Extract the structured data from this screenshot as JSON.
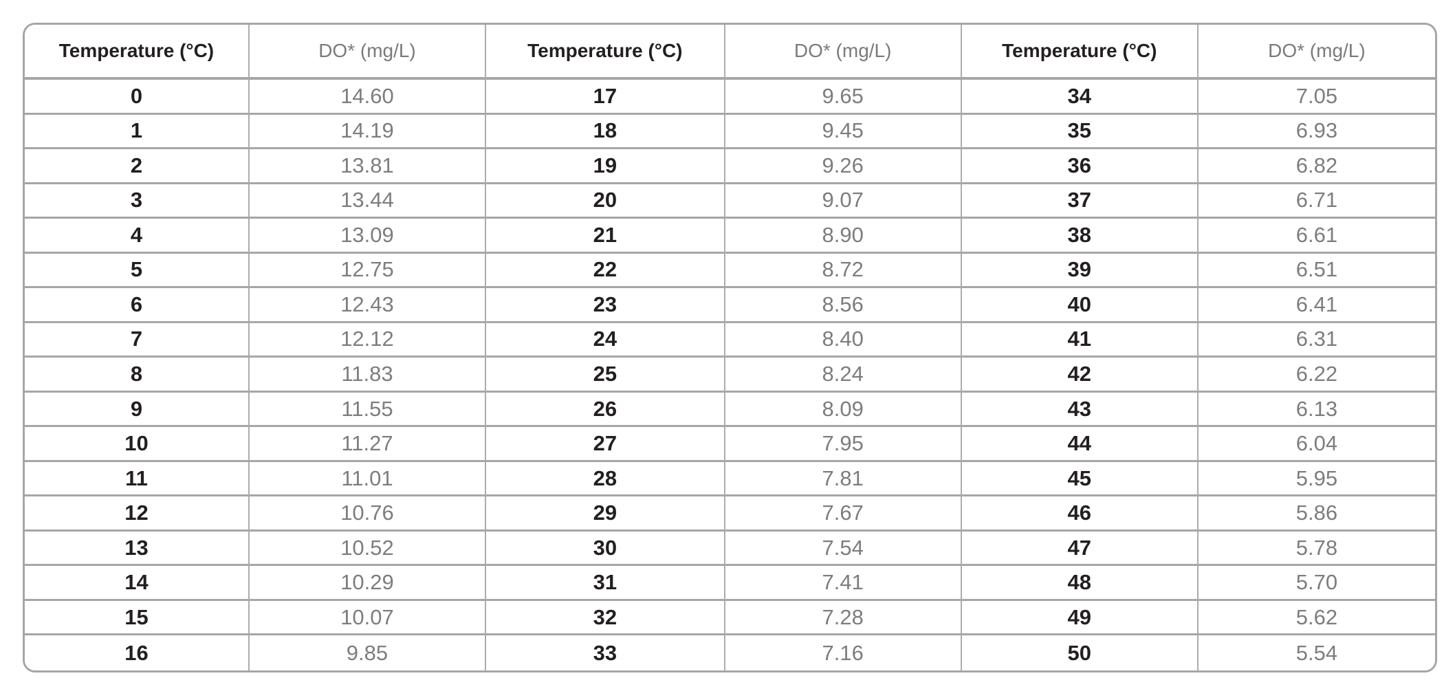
{
  "page": {
    "background": "#ffffff"
  },
  "table": {
    "border_color": "#a6a6a6",
    "temp_text_color": "#231f20",
    "do_text_color": "#7d7d7d",
    "groups": [
      {
        "temp_header": "Temperature (°C)",
        "do_header": "DO* (mg/L)",
        "rows": [
          {
            "temp": "0",
            "do": "14.60"
          },
          {
            "temp": "1",
            "do": "14.19"
          },
          {
            "temp": "2",
            "do": "13.81"
          },
          {
            "temp": "3",
            "do": "13.44"
          },
          {
            "temp": "4",
            "do": "13.09"
          },
          {
            "temp": "5",
            "do": "12.75"
          },
          {
            "temp": "6",
            "do": "12.43"
          },
          {
            "temp": "7",
            "do": "12.12"
          },
          {
            "temp": "8",
            "do": "11.83"
          },
          {
            "temp": "9",
            "do": "11.55"
          },
          {
            "temp": "10",
            "do": "11.27"
          },
          {
            "temp": "11",
            "do": "11.01"
          },
          {
            "temp": "12",
            "do": "10.76"
          },
          {
            "temp": "13",
            "do": "10.52"
          },
          {
            "temp": "14",
            "do": "10.29"
          },
          {
            "temp": "15",
            "do": "10.07"
          },
          {
            "temp": "16",
            "do": "9.85"
          }
        ]
      },
      {
        "temp_header": "Temperature (°C)",
        "do_header": "DO* (mg/L)",
        "rows": [
          {
            "temp": "17",
            "do": "9.65"
          },
          {
            "temp": "18",
            "do": "9.45"
          },
          {
            "temp": "19",
            "do": "9.26"
          },
          {
            "temp": "20",
            "do": "9.07"
          },
          {
            "temp": "21",
            "do": "8.90"
          },
          {
            "temp": "22",
            "do": "8.72"
          },
          {
            "temp": "23",
            "do": "8.56"
          },
          {
            "temp": "24",
            "do": "8.40"
          },
          {
            "temp": "25",
            "do": "8.24"
          },
          {
            "temp": "26",
            "do": "8.09"
          },
          {
            "temp": "27",
            "do": "7.95"
          },
          {
            "temp": "28",
            "do": "7.81"
          },
          {
            "temp": "29",
            "do": "7.67"
          },
          {
            "temp": "30",
            "do": "7.54"
          },
          {
            "temp": "31",
            "do": "7.41"
          },
          {
            "temp": "32",
            "do": "7.28"
          },
          {
            "temp": "33",
            "do": "7.16"
          }
        ]
      },
      {
        "temp_header": "Temperature (°C)",
        "do_header": "DO* (mg/L)",
        "rows": [
          {
            "temp": "34",
            "do": "7.05"
          },
          {
            "temp": "35",
            "do": "6.93"
          },
          {
            "temp": "36",
            "do": "6.82"
          },
          {
            "temp": "37",
            "do": "6.71"
          },
          {
            "temp": "38",
            "do": "6.61"
          },
          {
            "temp": "39",
            "do": "6.51"
          },
          {
            "temp": "40",
            "do": "6.41"
          },
          {
            "temp": "41",
            "do": "6.31"
          },
          {
            "temp": "42",
            "do": "6.22"
          },
          {
            "temp": "43",
            "do": "6.13"
          },
          {
            "temp": "44",
            "do": "6.04"
          },
          {
            "temp": "45",
            "do": "5.95"
          },
          {
            "temp": "46",
            "do": "5.86"
          },
          {
            "temp": "47",
            "do": "5.78"
          },
          {
            "temp": "48",
            "do": "5.70"
          },
          {
            "temp": "49",
            "do": "5.62"
          },
          {
            "temp": "50",
            "do": "5.54"
          }
        ]
      }
    ]
  },
  "chart_data": {
    "type": "table",
    "title": "",
    "columns": [
      "Temperature (°C)",
      "DO* (mg/L)"
    ],
    "layout": "three column-pairs side by side, 17 rows each",
    "temperature_c": [
      0,
      1,
      2,
      3,
      4,
      5,
      6,
      7,
      8,
      9,
      10,
      11,
      12,
      13,
      14,
      15,
      16,
      17,
      18,
      19,
      20,
      21,
      22,
      23,
      24,
      25,
      26,
      27,
      28,
      29,
      30,
      31,
      32,
      33,
      34,
      35,
      36,
      37,
      38,
      39,
      40,
      41,
      42,
      43,
      44,
      45,
      46,
      47,
      48,
      49,
      50
    ],
    "do_mg_per_l": [
      14.6,
      14.19,
      13.81,
      13.44,
      13.09,
      12.75,
      12.43,
      12.12,
      11.83,
      11.55,
      11.27,
      11.01,
      10.76,
      10.52,
      10.29,
      10.07,
      9.85,
      9.65,
      9.45,
      9.26,
      9.07,
      8.9,
      8.72,
      8.56,
      8.4,
      8.24,
      8.09,
      7.95,
      7.81,
      7.67,
      7.54,
      7.41,
      7.28,
      7.16,
      7.05,
      6.93,
      6.82,
      6.71,
      6.61,
      6.51,
      6.41,
      6.31,
      6.22,
      6.13,
      6.04,
      5.95,
      5.86,
      5.78,
      5.7,
      5.62,
      5.54
    ]
  }
}
